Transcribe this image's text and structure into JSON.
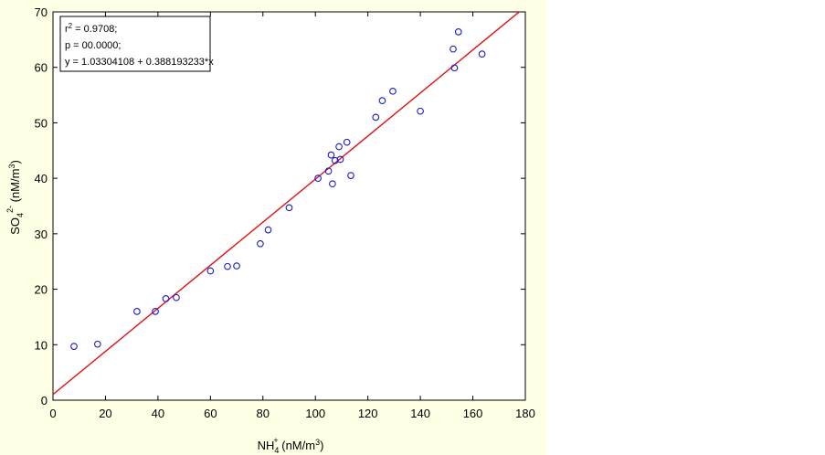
{
  "chart_data": {
    "type": "scatter",
    "title": "",
    "xlabel": {
      "main": "NH",
      "sub": "4",
      "sup": "+",
      "unit_pre": " (nM/m",
      "unit_sup": "3",
      "unit_post": ")"
    },
    "ylabel": {
      "main": "SO",
      "sub": "4",
      "sup": "2-",
      "unit_pre": " (nM/m",
      "unit_sup": "3",
      "unit_post": ")"
    },
    "xlim": [
      0,
      180
    ],
    "ylim": [
      0,
      70
    ],
    "xticks": [
      0,
      20,
      40,
      60,
      80,
      100,
      120,
      140,
      160,
      180
    ],
    "yticks": [
      0,
      10,
      20,
      30,
      40,
      50,
      60,
      70
    ],
    "grid": false,
    "marker_color": "#1a1acc",
    "line_color": "#e01010",
    "regression": {
      "intercept": 1.03304108,
      "slope": 0.388193233
    },
    "stats": {
      "r2_prefix": "r",
      "r2_sup": "2",
      "r2_value": " = 0.9708;",
      "p_line": "p = 00.0000;",
      "equation": "y = 1.03304108 + 0.388193233*x"
    },
    "points": [
      {
        "x": 8,
        "y": 9.7
      },
      {
        "x": 17,
        "y": 10.1
      },
      {
        "x": 32,
        "y": 16.0
      },
      {
        "x": 39,
        "y": 16.0
      },
      {
        "x": 43,
        "y": 18.3
      },
      {
        "x": 47,
        "y": 18.5
      },
      {
        "x": 60,
        "y": 23.3
      },
      {
        "x": 66.5,
        "y": 24.1
      },
      {
        "x": 70,
        "y": 24.2
      },
      {
        "x": 79,
        "y": 28.2
      },
      {
        "x": 82,
        "y": 30.7
      },
      {
        "x": 90,
        "y": 34.7
      },
      {
        "x": 101,
        "y": 40.0
      },
      {
        "x": 105,
        "y": 41.3
      },
      {
        "x": 106,
        "y": 44.2
      },
      {
        "x": 106.5,
        "y": 39.0
      },
      {
        "x": 107.5,
        "y": 43.2
      },
      {
        "x": 109,
        "y": 45.7
      },
      {
        "x": 109.5,
        "y": 43.4
      },
      {
        "x": 112,
        "y": 46.5
      },
      {
        "x": 113.5,
        "y": 40.5
      },
      {
        "x": 123,
        "y": 51.0
      },
      {
        "x": 125.5,
        "y": 54.0
      },
      {
        "x": 129.5,
        "y": 55.7
      },
      {
        "x": 140,
        "y": 52.1
      },
      {
        "x": 152.5,
        "y": 63.3
      },
      {
        "x": 153,
        "y": 59.9
      },
      {
        "x": 154.5,
        "y": 66.4
      },
      {
        "x": 163.5,
        "y": 62.4
      }
    ]
  }
}
